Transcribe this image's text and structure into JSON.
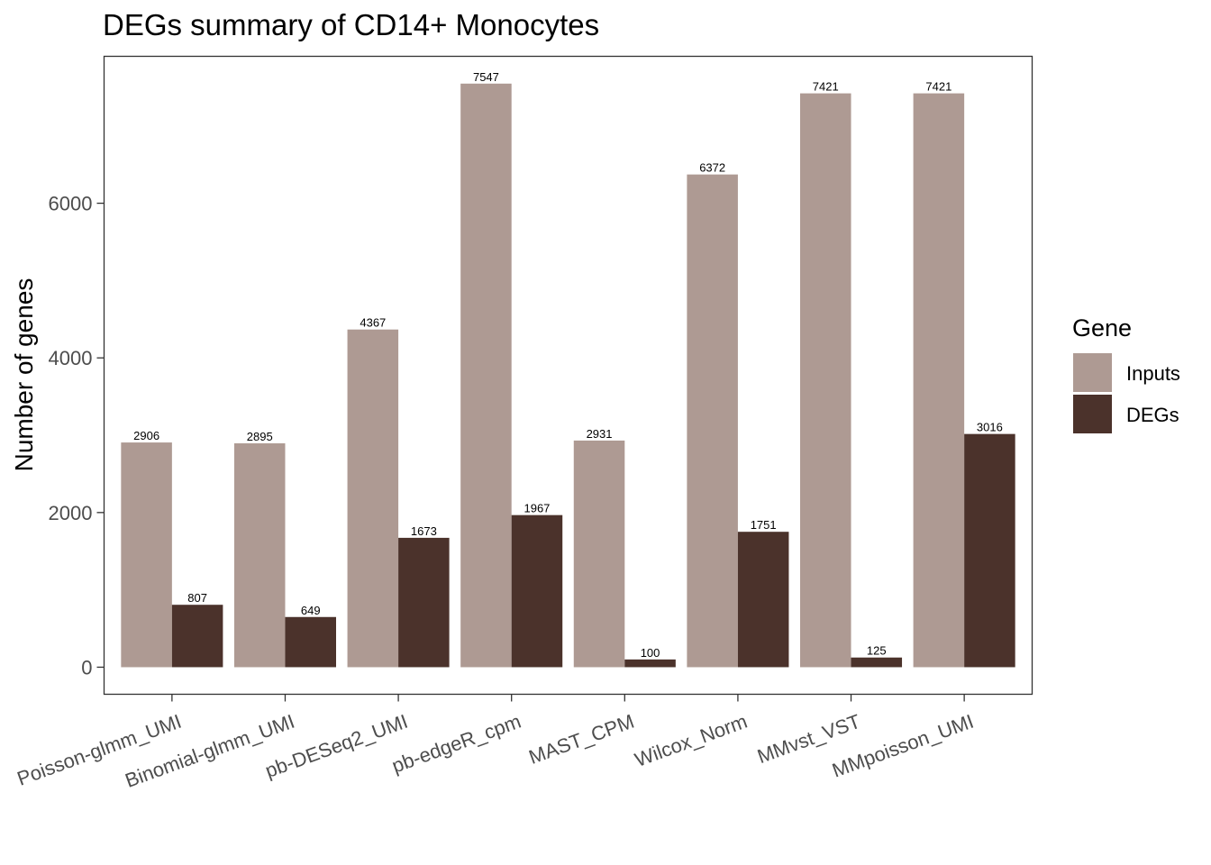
{
  "chart_data": {
    "type": "bar",
    "title": "DEGs summary of  CD14+ Monocytes",
    "xlabel": "",
    "ylabel": "Number of genes",
    "categories": [
      "Poisson-glmm_UMI",
      "Binomial-glmm_UMI",
      "pb-DESeq2_UMI",
      "pb-edgeR_cpm",
      "MAST_CPM",
      "Wilcox_Norm",
      "MMvst_VST",
      "MMpoisson_UMI"
    ],
    "series": [
      {
        "name": "Inputs",
        "color": "#ae9a93",
        "values": [
          2906,
          2895,
          4367,
          7547,
          2931,
          6372,
          7421,
          7421
        ]
      },
      {
        "name": "DEGs",
        "color": "#4b322b",
        "values": [
          807,
          649,
          1673,
          1967,
          100,
          1751,
          125,
          3016
        ]
      }
    ],
    "yticks": [
      0,
      2000,
      4000,
      6000
    ],
    "ylim": [
      -350,
      7900
    ],
    "legend": {
      "title": "Gene",
      "position": "right"
    },
    "grid": false
  }
}
